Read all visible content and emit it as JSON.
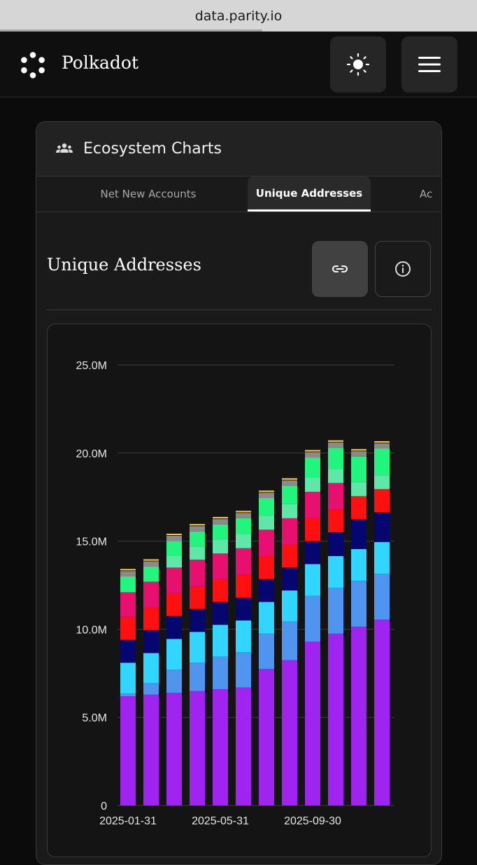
{
  "browser": {
    "url": "data.parity.io"
  },
  "header": {
    "brand": "Polkadot",
    "icons": [
      "polkadot-logo",
      "sun-icon",
      "hamburger-menu-icon"
    ]
  },
  "card": {
    "title": "Ecosystem Charts",
    "title_icon": "people-icon",
    "tabs": [
      {
        "label": "Net New Accounts",
        "active": false
      },
      {
        "label": "Unique Addresses",
        "active": true
      },
      {
        "label": "Ac",
        "active": false
      }
    ],
    "section_title": "Unique Addresses",
    "action_icons": [
      "link-icon",
      "info-icon"
    ]
  },
  "chart_data": {
    "type": "bar",
    "stacked": true,
    "y_ticks": [
      "0",
      "5.0M",
      "10.0M",
      "15.0M",
      "20.0M",
      "25.0M"
    ],
    "ylim": [
      0,
      25000000
    ],
    "x_tick_labels": [
      "2025-01-31",
      "2025-05-31",
      "2025-09-30"
    ],
    "grid": true,
    "categories": [
      "2025-01-31",
      "2025-02-28",
      "2025-03-31",
      "2025-04-30",
      "2025-05-31",
      "2025-06-30",
      "2025-07-31",
      "2025-08-31",
      "2025-09-30",
      "2025-10-31",
      "2025-11-30",
      "2025-12-31"
    ],
    "series": [
      {
        "color": "#a024f0",
        "values": [
          6.2,
          6.3,
          6.4,
          6.5,
          6.6,
          6.7,
          7.75,
          8.25,
          9.3,
          9.75,
          10.15,
          10.55
        ]
      },
      {
        "color": "#4f95f0",
        "values": [
          0.15,
          0.65,
          1.3,
          1.6,
          1.85,
          2.0,
          2.0,
          2.2,
          2.6,
          2.6,
          2.6,
          2.6
        ]
      },
      {
        "color": "#30d6ff",
        "values": [
          1.75,
          1.7,
          1.75,
          1.75,
          1.8,
          1.8,
          1.8,
          1.75,
          1.8,
          1.8,
          1.8,
          1.8
        ]
      },
      {
        "color": "#05066f",
        "values": [
          1.3,
          1.3,
          1.3,
          1.3,
          1.3,
          1.3,
          1.3,
          1.3,
          1.3,
          1.35,
          1.7,
          1.7
        ]
      },
      {
        "color": "#ff1010",
        "values": [
          1.3,
          1.3,
          1.3,
          1.3,
          1.3,
          1.3,
          1.3,
          1.3,
          1.3,
          1.3,
          1.3,
          1.3
        ]
      },
      {
        "color": "#e8106e",
        "values": [
          1.4,
          1.45,
          1.45,
          1.5,
          1.45,
          1.5,
          1.5,
          1.5,
          1.5,
          1.5,
          0.001,
          0.001
        ]
      },
      {
        "color": "#5de8a8",
        "values": [
          0.001,
          0.001,
          0.65,
          0.75,
          0.8,
          0.8,
          0.8,
          0.8,
          0.8,
          0.8,
          0.8,
          0.8
        ]
      },
      {
        "color": "#22f57e",
        "values": [
          0.9,
          0.85,
          0.85,
          0.85,
          0.85,
          0.9,
          1.0,
          1.05,
          1.15,
          1.2,
          1.45,
          1.5
        ]
      },
      {
        "color": "#8a8a8a",
        "values": [
          0.3,
          0.3,
          0.3,
          0.3,
          0.3,
          0.3,
          0.3,
          0.3,
          0.3,
          0.3,
          0.3,
          0.3
        ]
      }
    ],
    "value_unit": "M"
  }
}
